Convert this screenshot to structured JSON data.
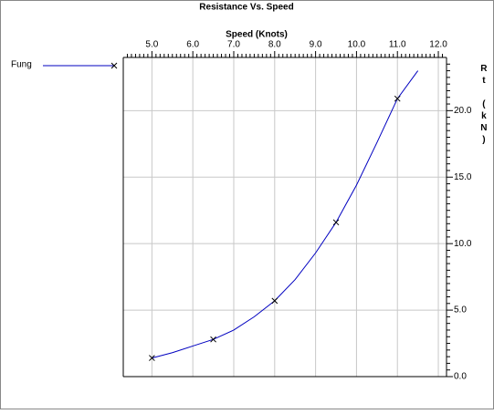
{
  "chart_data": {
    "type": "line",
    "title": "Resistance Vs. Speed",
    "x_label": "Speed (Knots)",
    "y_label": "Rt (kN)",
    "x": [
      5.0,
      5.5,
      6.0,
      6.5,
      7.0,
      7.5,
      8.0,
      8.5,
      9.0,
      9.5,
      10.0,
      10.5,
      11.0,
      11.5
    ],
    "series": [
      {
        "name": "Fung",
        "color": "#0000c0",
        "values": [
          1.4,
          1.8,
          2.3,
          2.8,
          3.5,
          4.5,
          5.7,
          7.3,
          9.3,
          11.6,
          14.4,
          17.6,
          20.9,
          23.0
        ],
        "markers": [
          true,
          false,
          false,
          true,
          false,
          false,
          true,
          false,
          false,
          true,
          false,
          false,
          true,
          false
        ]
      }
    ],
    "xlim": [
      4.3,
      12.2
    ],
    "ylim": [
      0,
      24
    ],
    "xticks": [
      {
        "value": 5,
        "label": "5.0"
      },
      {
        "value": 6,
        "label": "6.0"
      },
      {
        "value": 7,
        "label": "7.0"
      },
      {
        "value": 8,
        "label": "8.0"
      },
      {
        "value": 9,
        "label": "9.0"
      },
      {
        "value": 10,
        "label": "10.0"
      },
      {
        "value": 11,
        "label": "11.0"
      },
      {
        "value": 12,
        "label": "12.0"
      }
    ],
    "yticks": [
      {
        "value": 0,
        "label": "0.0"
      },
      {
        "value": 5,
        "label": "5.0"
      },
      {
        "value": 10,
        "label": "10.0"
      },
      {
        "value": 15,
        "label": "15.0"
      },
      {
        "value": 20,
        "label": "20.0"
      }
    ],
    "grid": true,
    "legend": "left"
  }
}
